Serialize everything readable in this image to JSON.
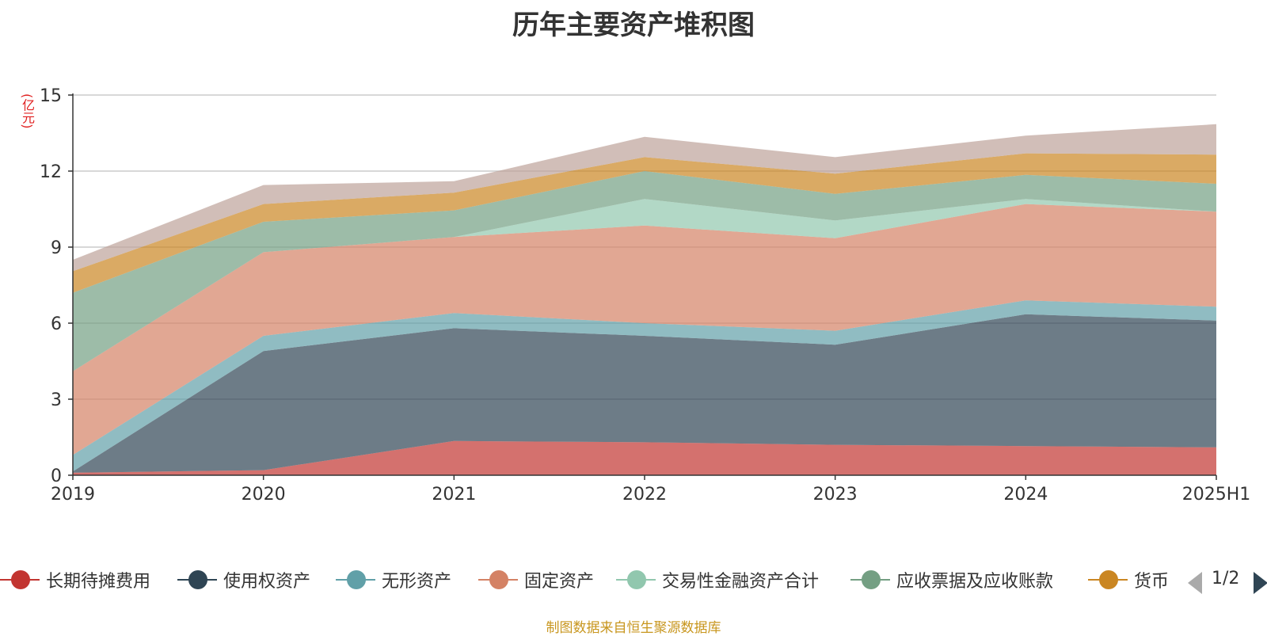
{
  "chart_data": {
    "type": "area",
    "stacked": true,
    "title": "历年主要资产堆积图",
    "ylabel": "(亿元)",
    "categories": [
      "2019",
      "2020",
      "2021",
      "2022",
      "2023",
      "2024",
      "2025H1"
    ],
    "ylim": [
      0,
      15
    ],
    "yticks": [
      0,
      3,
      6,
      9,
      12,
      15
    ],
    "grid": true,
    "legend_position": "bottom",
    "series": [
      {
        "name": "长期待摊费用",
        "color": "#c23531",
        "values": [
          0.1,
          0.2,
          1.35,
          1.3,
          1.2,
          1.15,
          1.1
        ]
      },
      {
        "name": "使用权资产",
        "color": "#2f4554",
        "values": [
          0.05,
          4.7,
          4.45,
          4.2,
          3.95,
          5.2,
          5.0
        ]
      },
      {
        "name": "无形资产",
        "color": "#61a0a8",
        "values": [
          0.65,
          0.6,
          0.6,
          0.5,
          0.55,
          0.55,
          0.55
        ]
      },
      {
        "name": "固定资产",
        "color": "#d48265",
        "values": [
          3.3,
          3.3,
          3.0,
          3.85,
          3.65,
          3.8,
          3.75
        ]
      },
      {
        "name": "交易性金融资产合计",
        "color": "#91c7ae",
        "values": [
          0.0,
          0.0,
          0.0,
          1.05,
          0.7,
          0.2,
          0.0
        ]
      },
      {
        "name": "应收票据及应收账款",
        "color": "#749f83",
        "values": [
          3.1,
          1.2,
          1.05,
          1.1,
          1.05,
          0.95,
          1.1
        ]
      },
      {
        "name": "货币",
        "color": "#ca8622",
        "values": [
          0.85,
          0.7,
          0.7,
          0.55,
          0.8,
          0.85,
          1.15
        ]
      },
      {
        "name": "",
        "color": "#bda29a",
        "values": [
          0.45,
          0.75,
          0.45,
          0.8,
          0.65,
          0.7,
          1.2
        ]
      }
    ]
  },
  "legend": {
    "page_indicator": "1/2"
  },
  "source_note": "制图数据来自恒生聚源数据库"
}
